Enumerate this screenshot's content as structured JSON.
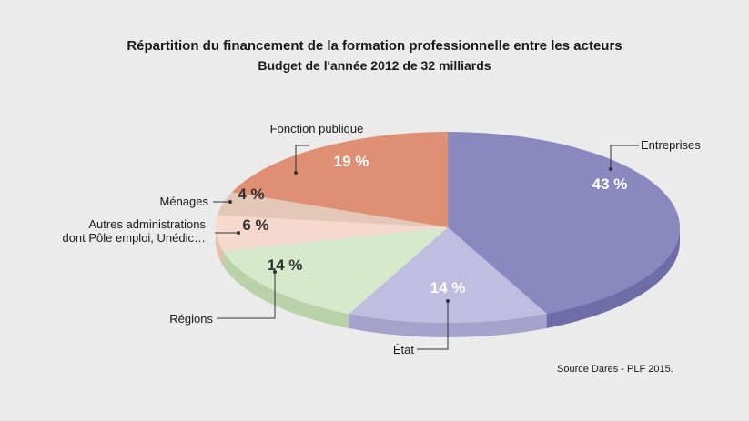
{
  "chart_data": {
    "type": "pie",
    "title": "Répartition du financement de la formation professionnelle entre les acteurs",
    "subtitle": "Budget de l'année 2012 de 32 milliards",
    "source": "Source Dares - PLF 2015.",
    "slices": [
      {
        "label": "Entreprises",
        "value": 43,
        "value_label": "43 %",
        "color": "#8a88bf",
        "side": "#6f6da8",
        "value_color": "#ffffff"
      },
      {
        "label": "État",
        "value": 14,
        "value_label": "14 %",
        "color": "#bfbde0",
        "side": "#a5a3cc",
        "value_color": "#ffffff"
      },
      {
        "label": "Régions",
        "value": 14,
        "value_label": "14 %",
        "color": "#d6e9ca",
        "side": "#b9d2a9",
        "value_color": "#333333"
      },
      {
        "label": "Autres administrations dont Pôle emploi, Unédic…",
        "label_lines": [
          "Autres administrations",
          "dont Pôle emploi, Unédic…"
        ],
        "value": 6,
        "value_label": "6 %",
        "color": "#f5d9cc",
        "side": "#e3bfae",
        "value_color": "#333333"
      },
      {
        "label": "Ménages",
        "value": 4,
        "value_label": "4 %",
        "color": "#e3c8b8",
        "side": "#cdae9c",
        "value_color": "#333333"
      },
      {
        "label": "Fonction publique",
        "value": 19,
        "value_label": "19 %",
        "color": "#df8f74",
        "side": "#c47458",
        "value_color": "#ffffff"
      }
    ]
  }
}
